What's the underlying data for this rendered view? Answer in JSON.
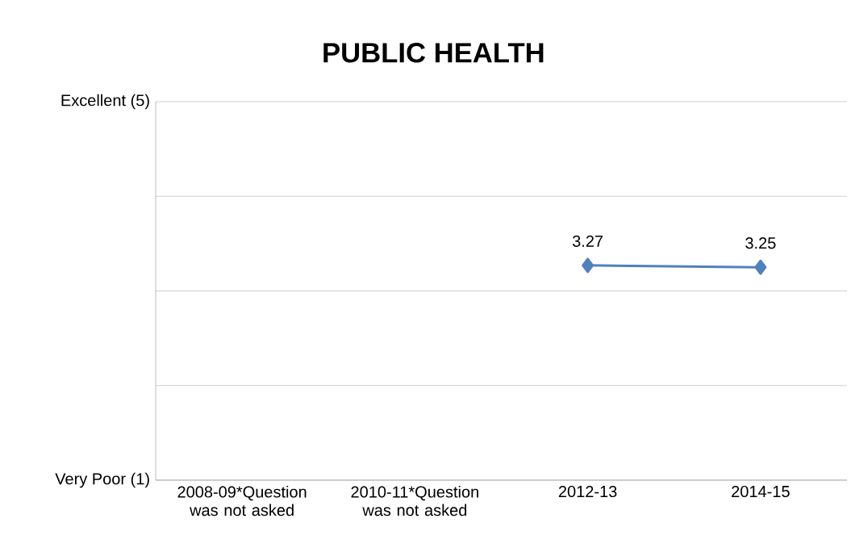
{
  "chart_data": {
    "type": "line",
    "title": "PUBLIC HEALTH",
    "categories": [
      "2008-09*Question was not asked",
      "2010-11*Question was not asked",
      "2012-13",
      "2014-15"
    ],
    "series": [
      {
        "color": "#4f81bd",
        "values": [
          null,
          null,
          3.27,
          3.25
        ]
      }
    ],
    "ylim": [
      1,
      5
    ],
    "yticks": [
      {
        "value": 1,
        "label": "Very Poor (1)"
      },
      {
        "value": 2,
        "label": null
      },
      {
        "value": 3,
        "label": null
      },
      {
        "value": 4,
        "label": null
      },
      {
        "value": 5,
        "label": "Excellent (5)"
      }
    ],
    "grid": "y",
    "marker": "diamond",
    "line_style": "solid",
    "data_labels": true
  }
}
